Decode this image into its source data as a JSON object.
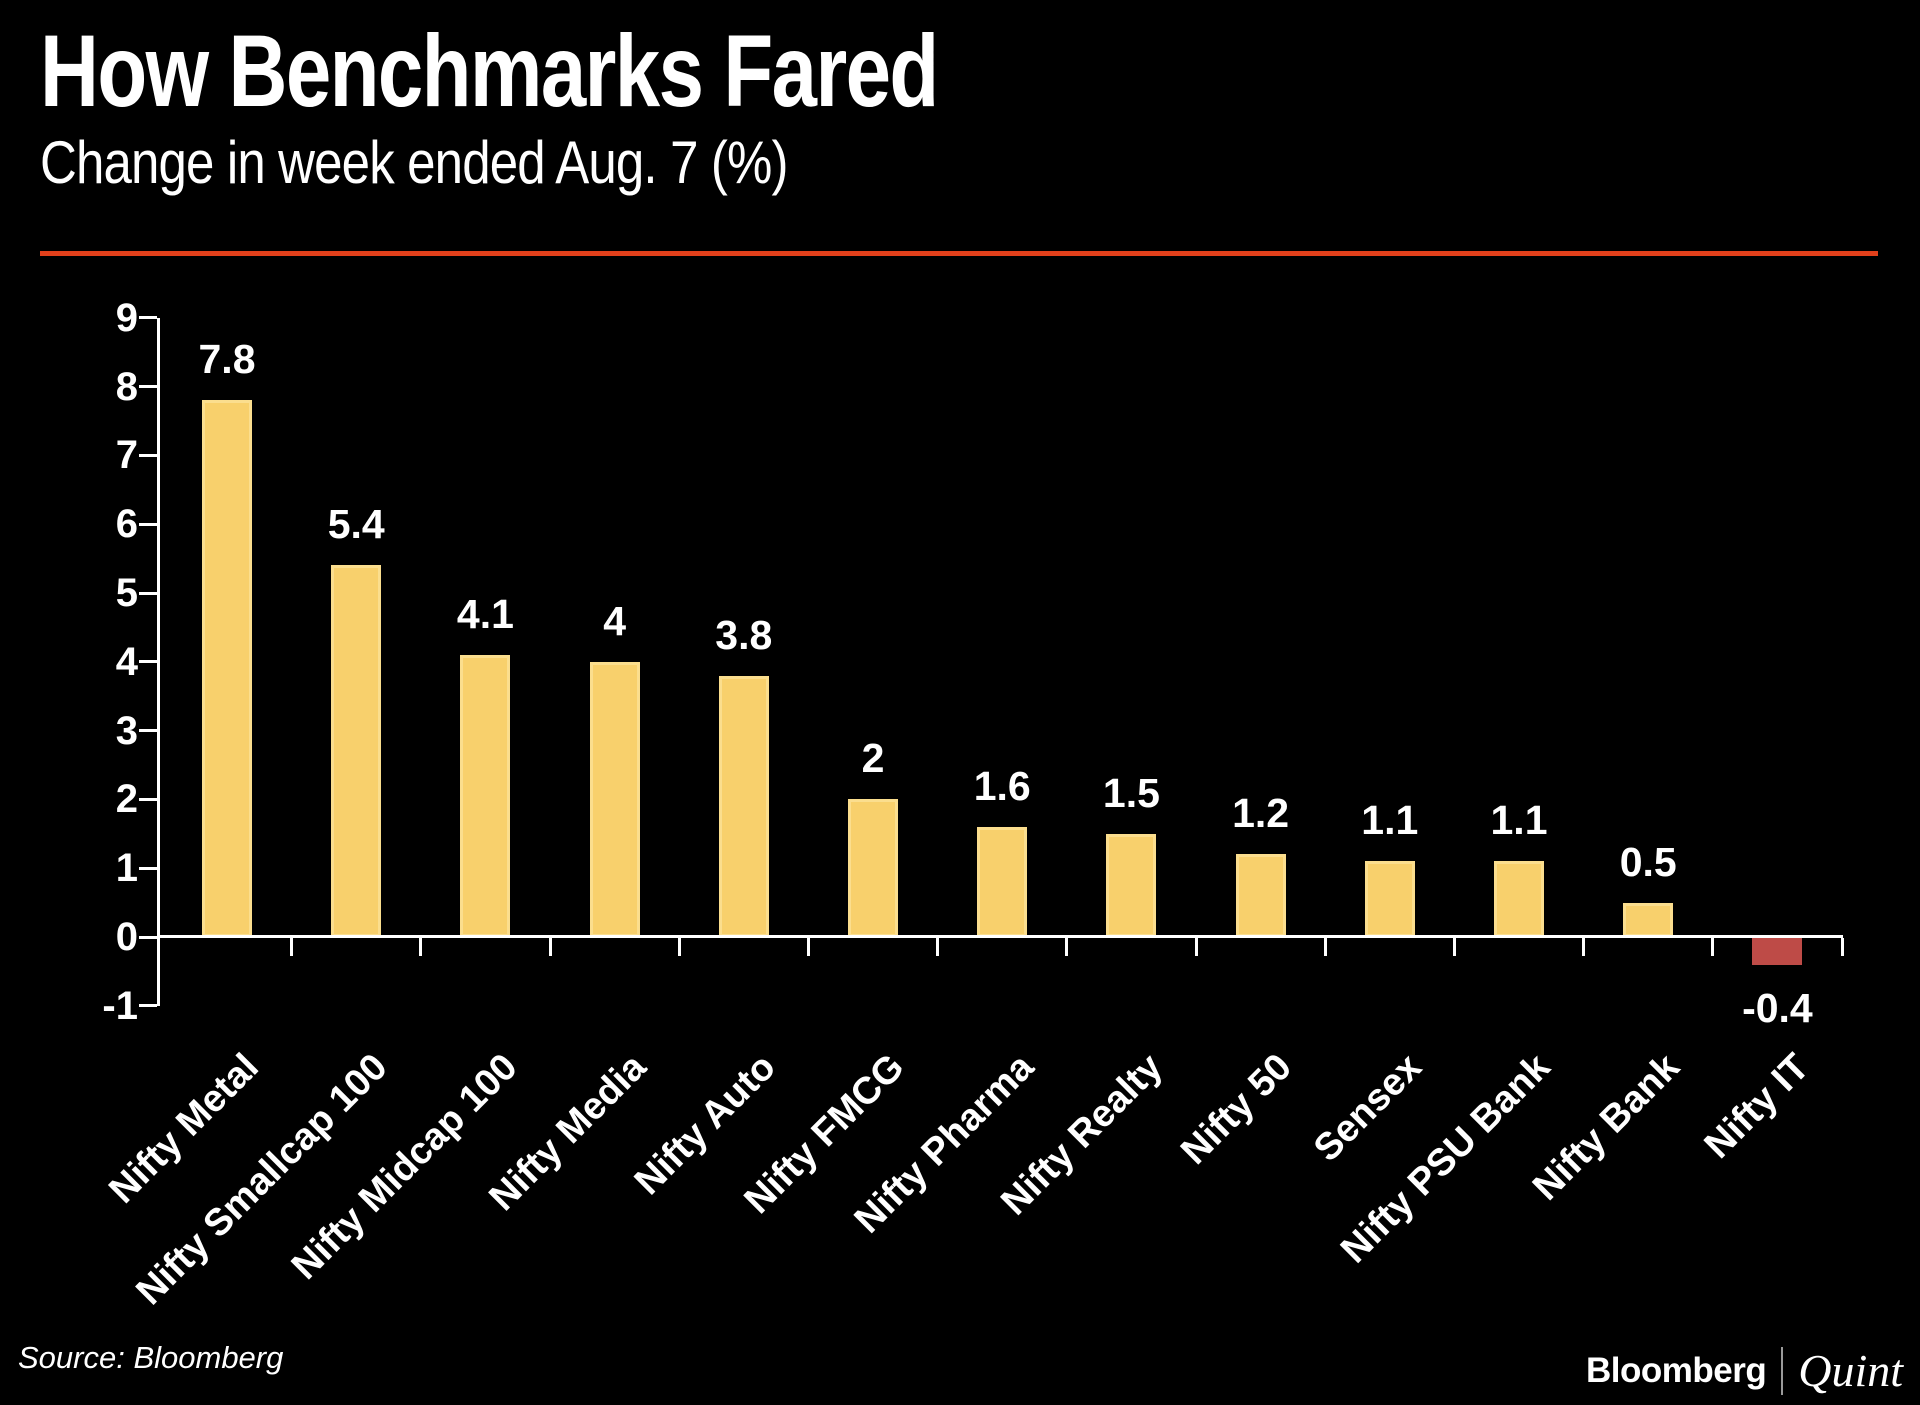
{
  "header": {
    "title": "How Benchmarks Fared",
    "subtitle": "Change in week ended Aug. 7 (%)"
  },
  "footer": {
    "source": "Source: Bloomberg",
    "brand_bloomberg": "Bloomberg",
    "brand_quint": "Quint"
  },
  "colors": {
    "background": "#000000",
    "text": "#FFFFFF",
    "accent_line": "#E2401B",
    "bar_positive": "#F8D06C",
    "bar_negative": "#BE4B47",
    "axis": "#FFFFFF"
  },
  "chart_data": {
    "type": "bar",
    "title": "How Benchmarks Fared",
    "subtitle": "Change in week ended Aug. 7 (%)",
    "categories": [
      "Nifty Metal",
      "Nifty Smallcap 100",
      "Nifty Midcap 100",
      "Nifty Media",
      "Nifty Auto",
      "Nifty FMCG",
      "Nifty Pharma",
      "Nifty Realty",
      "Nifty 50",
      "Sensex",
      "Nifty PSU Bank",
      "Nifty Bank",
      "Nifty IT"
    ],
    "values": [
      7.8,
      5.4,
      4.1,
      4,
      3.8,
      2,
      1.6,
      1.5,
      1.2,
      1.1,
      1.1,
      0.5,
      -0.4
    ],
    "value_labels": [
      "7.8",
      "5.4",
      "4.1",
      "4",
      "3.8",
      "2",
      "1.6",
      "1.5",
      "1.2",
      "1.1",
      "1.1",
      "0.5",
      "-0.4"
    ],
    "xlabel": "",
    "ylabel": "",
    "ylim": [
      -1,
      9
    ],
    "yticks": [
      -1,
      0,
      1,
      2,
      3,
      4,
      5,
      6,
      7,
      8,
      9
    ],
    "grid": false,
    "legend": null,
    "bar_color_rule": "positive bars yellow, negative bars red",
    "category_label_rotation_deg": -45
  }
}
